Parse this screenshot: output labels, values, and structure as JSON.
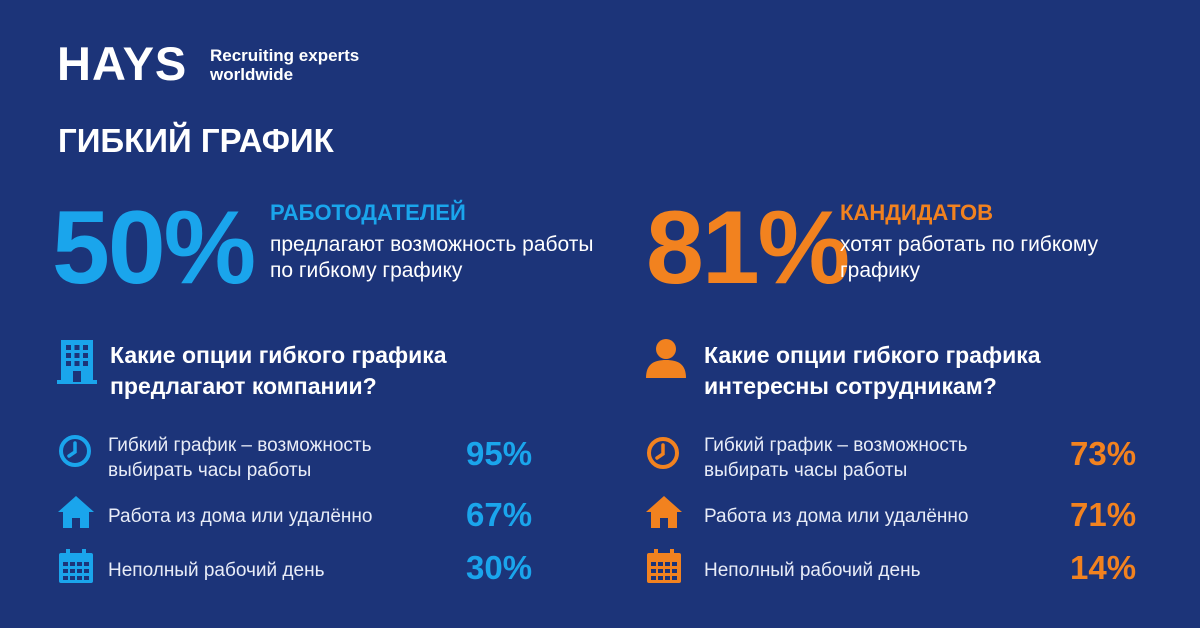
{
  "brand": {
    "name": "HAYS",
    "tagline": "Recruiting experts worldwide"
  },
  "title": "ГИБКИЙ ГРАФИК",
  "colors": {
    "background": "#1c3479",
    "employers": "#1aa5ec",
    "candidates": "#f2821f"
  },
  "employers": {
    "percent": "50%",
    "heading": "РАБОТОДАТЕЛЕЙ",
    "description": "предлагают возможность работы по гибкому графику",
    "question_icon": "office-building-icon",
    "question": "Какие опции гибкого графика предлагают компании?",
    "options": [
      {
        "icon": "clock-icon",
        "label": "Гибкий график – возможность выбирать часы работы",
        "value": "95%"
      },
      {
        "icon": "house-icon",
        "label": "Работа из дома или удалённо",
        "value": "67%"
      },
      {
        "icon": "calendar-icon",
        "label": "Неполный рабочий день",
        "value": "30%"
      }
    ]
  },
  "candidates": {
    "percent": "81%",
    "heading": "КАНДИДАТОВ",
    "description": "хотят работать по гибкому графику",
    "question_icon": "person-icon",
    "question": "Какие опции гибкого графика интересны сотрудникам?",
    "options": [
      {
        "icon": "clock-icon",
        "label": "Гибкий график – возможность выбирать часы работы",
        "value": "73%"
      },
      {
        "icon": "house-icon",
        "label": "Работа из дома или удалённо",
        "value": "71%"
      },
      {
        "icon": "calendar-icon",
        "label": "Неполный рабочий день",
        "value": "14%"
      }
    ]
  }
}
